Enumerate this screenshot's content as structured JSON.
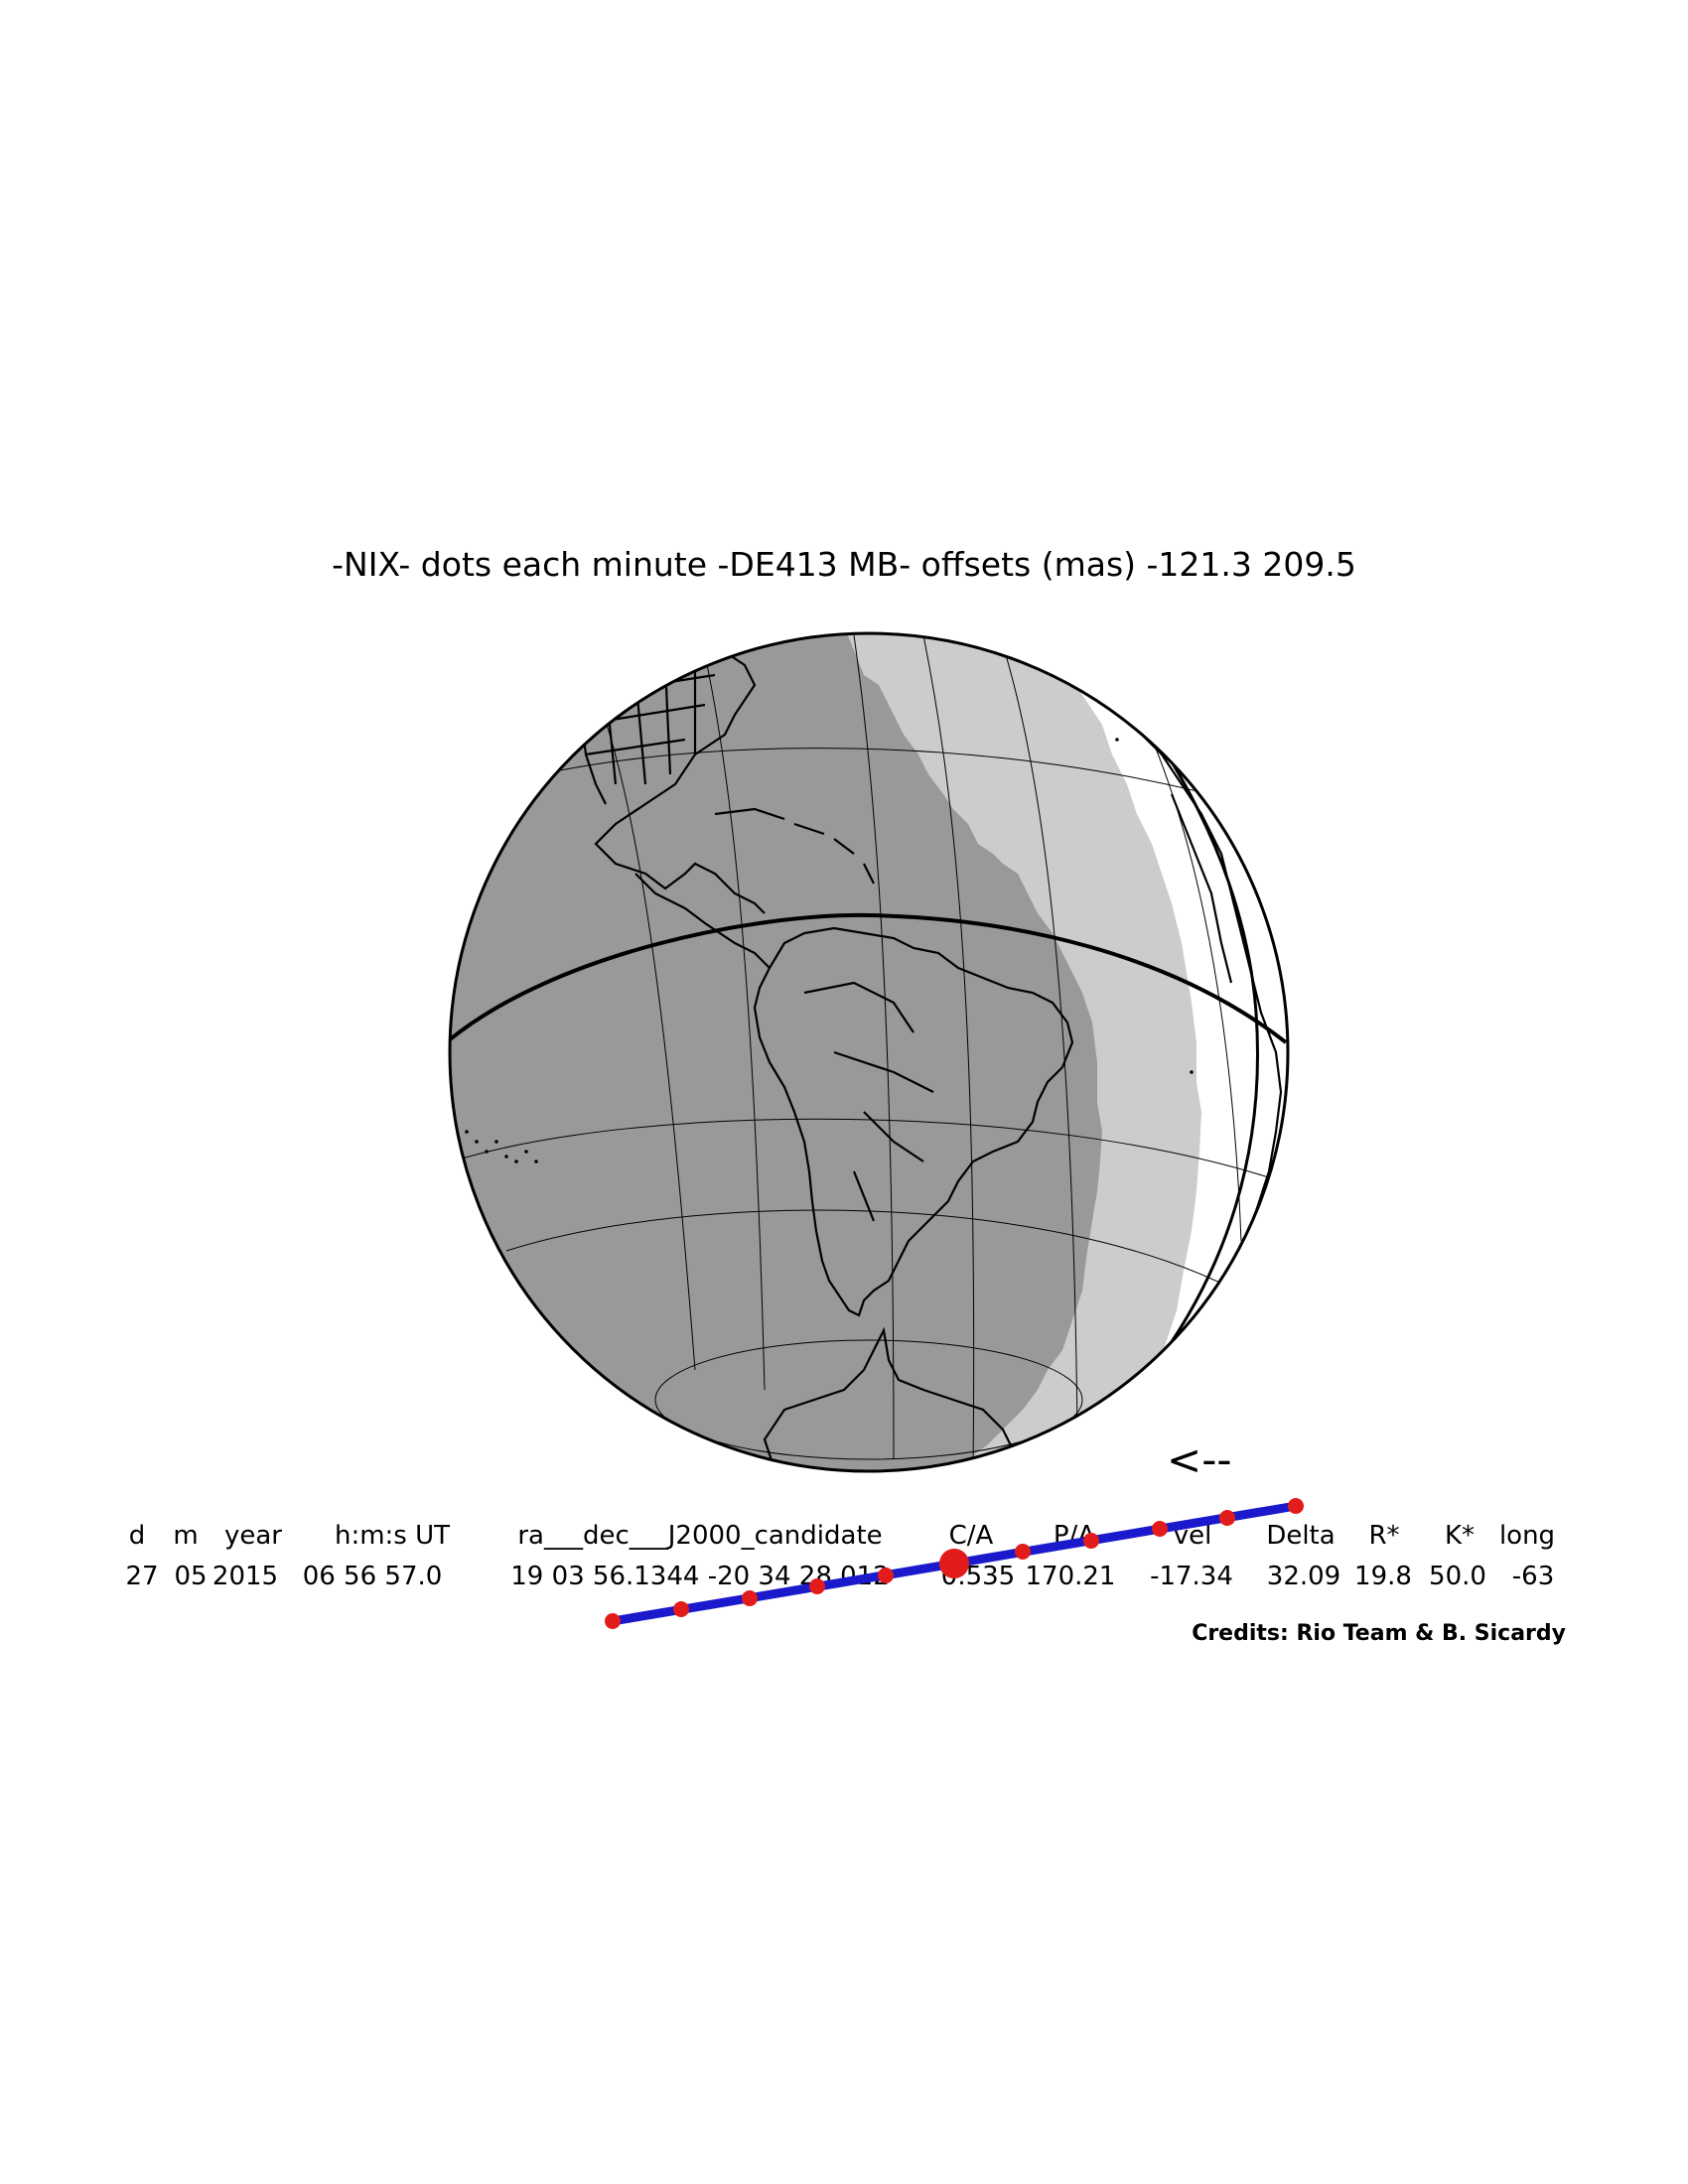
{
  "title": "-NIX- dots each minute -DE413 MB- offsets (mas) -121.3 209.5",
  "direction_arrow": "<--",
  "colors": {
    "night": "#999999",
    "penumbra": "#cccccc",
    "day": "#ffffff",
    "coast": "#000000",
    "track": "#1a1acc",
    "dots": "#e21b1b"
  },
  "table": {
    "headers": [
      "d",
      "m",
      "year",
      "h:m:s UT",
      "ra___dec___J2000_candidate",
      "C/A",
      "P/A",
      "vel",
      "Delta",
      "R*",
      "K*",
      "long"
    ],
    "values": [
      "27",
      "05",
      "2015",
      "06 56 57.0",
      "19 03 56.1344 -20 34 28.012",
      "0.535",
      "170.21",
      "-17.34",
      "32.09",
      "19.8",
      "50.0",
      "-63"
    ]
  },
  "credits": "Credits: Rio Team & B. Sicardy"
}
